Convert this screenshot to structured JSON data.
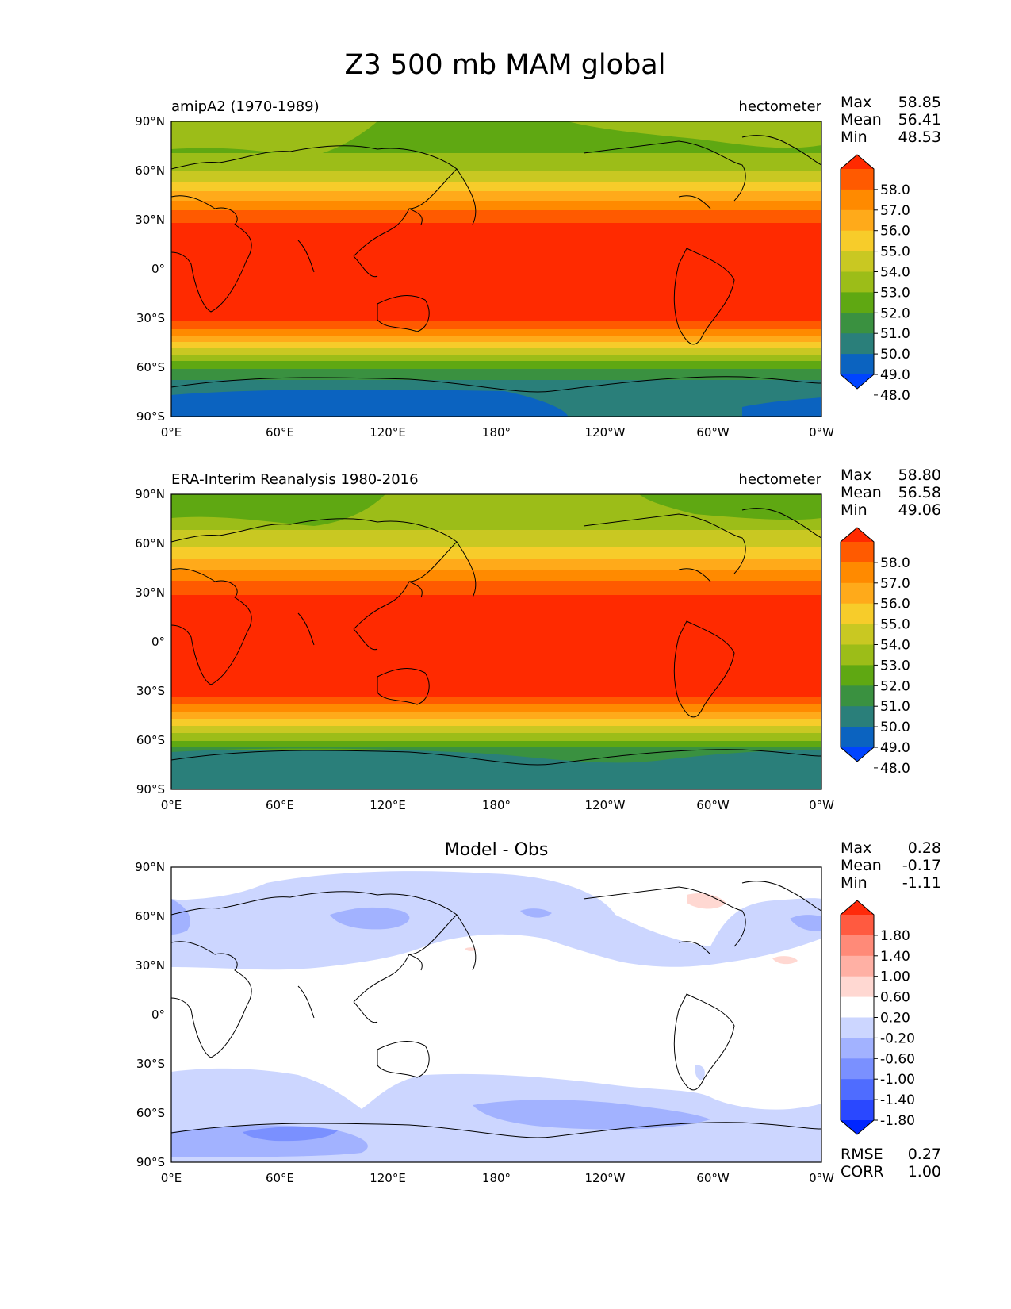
{
  "title": "Z3 500 mb MAM global",
  "x_ticks": [
    "0°E",
    "60°E",
    "120°E",
    "180°",
    "120°W",
    "60°W",
    "0°W"
  ],
  "y_ticks": [
    "90°N",
    "60°N",
    "30°N",
    "0°",
    "30°S",
    "60°S",
    "90°S"
  ],
  "panels": [
    {
      "left_title": "amipA2 (1970-1989)",
      "right_title": "hectometer",
      "center_title": "",
      "stats": [
        {
          "label": "Max",
          "value": "58.85"
        },
        {
          "label": "Mean",
          "value": "56.41"
        },
        {
          "label": "Min",
          "value": "48.53"
        }
      ],
      "colorbar": {
        "labels": [
          "58.0",
          "57.0",
          "56.0",
          "55.0",
          "54.0",
          "53.0",
          "52.0",
          "51.0",
          "50.0",
          "49.0",
          "48.0"
        ],
        "colors": [
          "#ff2a00",
          "#ff5a00",
          "#ff8a00",
          "#ffaa1a",
          "#f7cc2a",
          "#c9c822",
          "#9cbd18",
          "#5fa812",
          "#3a9140",
          "#2a7f7a",
          "#0b63c0",
          "#0044ff"
        ]
      }
    },
    {
      "left_title": "ERA-Interim Reanalysis 1980-2016",
      "right_title": "hectometer",
      "center_title": "",
      "stats": [
        {
          "label": "Max",
          "value": "58.80"
        },
        {
          "label": "Mean",
          "value": "56.58"
        },
        {
          "label": "Min",
          "value": "49.06"
        }
      ],
      "colorbar": {
        "labels": [
          "58.0",
          "57.0",
          "56.0",
          "55.0",
          "54.0",
          "53.0",
          "52.0",
          "51.0",
          "50.0",
          "49.0",
          "48.0"
        ],
        "colors": [
          "#ff2a00",
          "#ff5a00",
          "#ff8a00",
          "#ffaa1a",
          "#f7cc2a",
          "#c9c822",
          "#9cbd18",
          "#5fa812",
          "#3a9140",
          "#2a7f7a",
          "#0b63c0",
          "#0044ff"
        ]
      }
    },
    {
      "left_title": "",
      "right_title": "",
      "center_title": "Model - Obs",
      "stats": [
        {
          "label": "Max",
          "value": "0.28"
        },
        {
          "label": "Mean",
          "value": "-0.17"
        },
        {
          "label": "Min",
          "value": "-1.11"
        }
      ],
      "extra_stats": [
        {
          "label": "RMSE",
          "value": "0.27"
        },
        {
          "label": "CORR",
          "value": "1.00"
        }
      ],
      "colorbar": {
        "labels": [
          "1.80",
          "1.40",
          "1.00",
          "0.60",
          "0.20",
          "-0.20",
          "-0.60",
          "-1.00",
          "-1.40",
          "-1.80"
        ],
        "colors": [
          "#ff2a0a",
          "#ff5a40",
          "#ff8a78",
          "#ffb0a4",
          "#ffd8d2",
          "#ffffff",
          "#ccd6ff",
          "#a2b2ff",
          "#7a90ff",
          "#4f6cff",
          "#2a48ff",
          "#0026ff"
        ]
      }
    }
  ]
}
